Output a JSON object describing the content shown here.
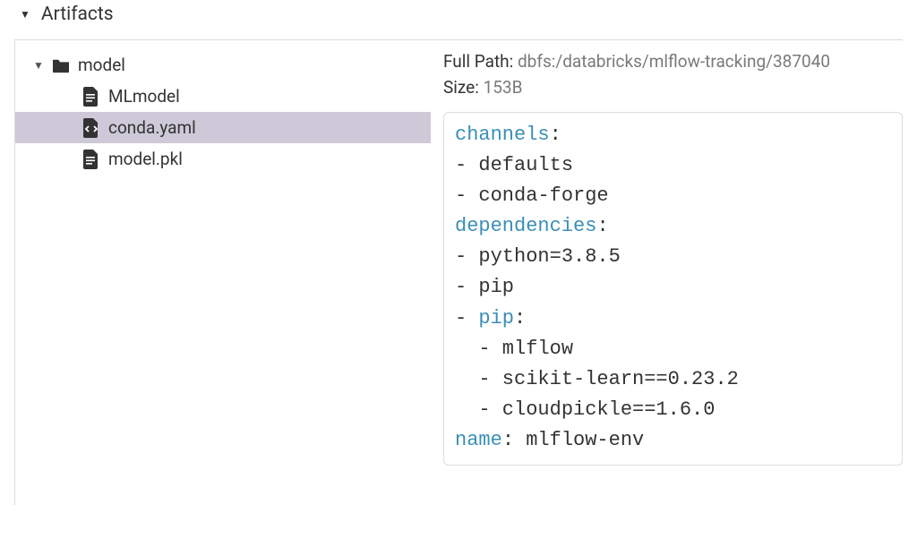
{
  "section": {
    "title": "Artifacts"
  },
  "tree": {
    "root": {
      "label": "model",
      "expanded": true,
      "children": [
        {
          "label": "MLmodel",
          "icon": "file",
          "selected": false
        },
        {
          "label": "conda.yaml",
          "icon": "code-file",
          "selected": true
        },
        {
          "label": "model.pkl",
          "icon": "file",
          "selected": false
        }
      ]
    }
  },
  "details": {
    "full_path_label": "Full Path: ",
    "full_path_value": "dbfs:/databricks/mlflow-tracking/387040",
    "size_label": "Size: ",
    "size_value": "153B"
  },
  "code": {
    "lines": [
      {
        "key": "channels",
        "text": ":"
      },
      {
        "text": "- defaults"
      },
      {
        "text": "- conda-forge"
      },
      {
        "key": "dependencies",
        "text": ":"
      },
      {
        "text": "- python=3.8.5"
      },
      {
        "text": "- pip"
      },
      {
        "prefix": "- ",
        "key": "pip",
        "text": ":"
      },
      {
        "text": "  - mlflow"
      },
      {
        "text": "  - scikit-learn==0.23.2"
      },
      {
        "text": "  - cloudpickle==1.6.0"
      },
      {
        "key": "name",
        "text": ": mlflow-env"
      }
    ]
  },
  "colors": {
    "border": "#dcdcdc",
    "selected_bg": "#cdc9d8",
    "muted_text": "#7a7a7a",
    "yaml_key": "#3a8fb7",
    "icon_fill": "#333333"
  }
}
